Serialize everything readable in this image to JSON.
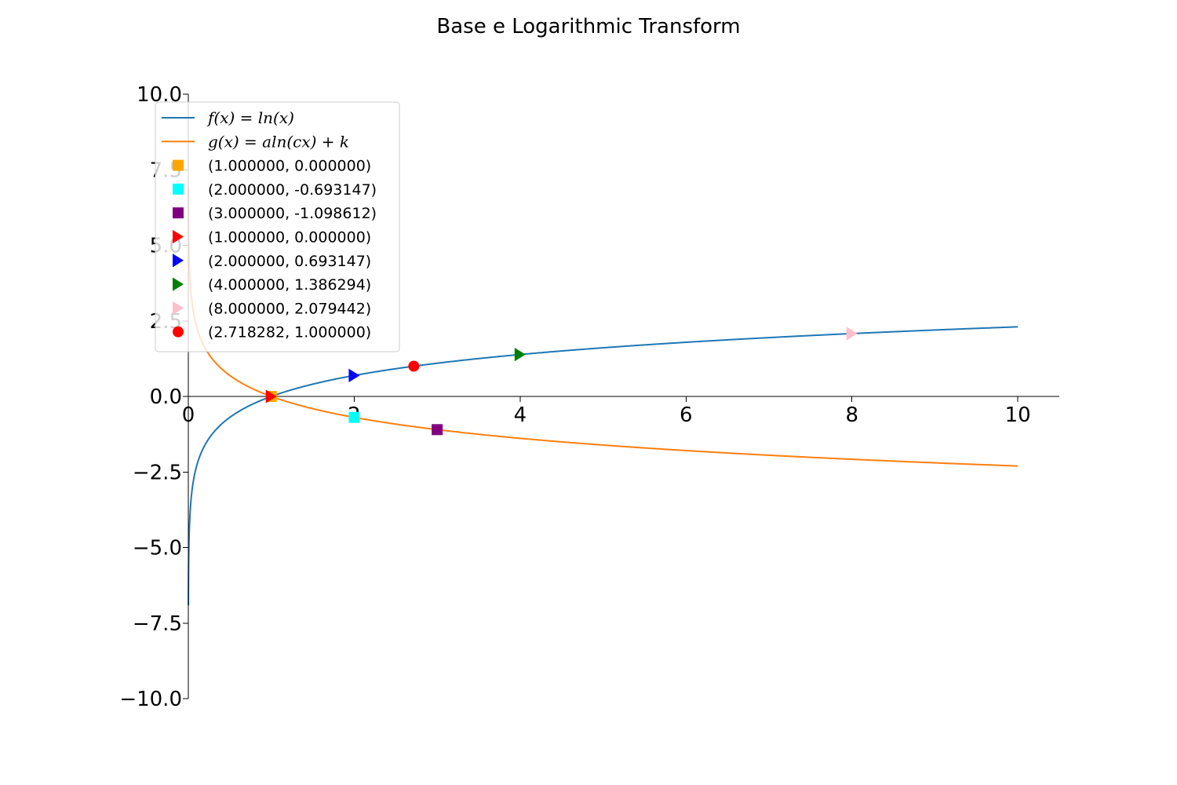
{
  "chart_data": {
    "type": "line",
    "title": "Base e Logarithmic Transform",
    "xlabel": "",
    "ylabel": "",
    "xlim": [
      0,
      10.5
    ],
    "ylim": [
      -10,
      10
    ],
    "x_ticks": [
      0,
      2,
      4,
      6,
      8,
      10
    ],
    "x_tick_labels": [
      "0",
      "2",
      "4",
      "6",
      "8",
      "10"
    ],
    "y_ticks": [
      10,
      7.5,
      5,
      2.5,
      0,
      -2.5,
      -5,
      -7.5,
      -10
    ],
    "y_tick_labels": [
      "10.0",
      "7.5",
      "5.0",
      "2.5",
      "0.0",
      "−2.5",
      "−5.0",
      "−7.5",
      "−10.0"
    ],
    "grid": false,
    "legend_position": "upper-left",
    "series": [
      {
        "name": "f(x) = ln(x)",
        "function": "ln(x)",
        "x_range": [
          0.001,
          10
        ],
        "color": "#1f77b4"
      },
      {
        "name": "g(x) = aln(cx) + k",
        "function": "-ln(x)",
        "x_range": [
          0.001,
          10
        ],
        "color": "#ff7f0e"
      }
    ],
    "points": [
      {
        "label": "(1.000000, 0.000000)",
        "x": 1.0,
        "y": 0.0,
        "marker": "square",
        "color": "#ffa500"
      },
      {
        "label": "(2.000000, -0.693147)",
        "x": 2.0,
        "y": -0.693147,
        "marker": "square",
        "color": "#00ffff"
      },
      {
        "label": "(3.000000, -1.098612)",
        "x": 3.0,
        "y": -1.098612,
        "marker": "square",
        "color": "#800080"
      },
      {
        "label": "(1.000000, 0.000000)",
        "x": 1.0,
        "y": 0.0,
        "marker": "triangle-right",
        "color": "#ff0000"
      },
      {
        "label": "(2.000000, 0.693147)",
        "x": 2.0,
        "y": 0.693147,
        "marker": "triangle-right",
        "color": "#0000ff"
      },
      {
        "label": "(4.000000, 1.386294)",
        "x": 4.0,
        "y": 1.386294,
        "marker": "triangle-right",
        "color": "#008000"
      },
      {
        "label": "(8.000000, 2.079442)",
        "x": 8.0,
        "y": 2.079442,
        "marker": "triangle-right",
        "color": "#ffc0cb"
      },
      {
        "label": "(2.718282, 1.000000)",
        "x": 2.718282,
        "y": 1.0,
        "marker": "circle",
        "color": "#ff0000"
      }
    ]
  }
}
